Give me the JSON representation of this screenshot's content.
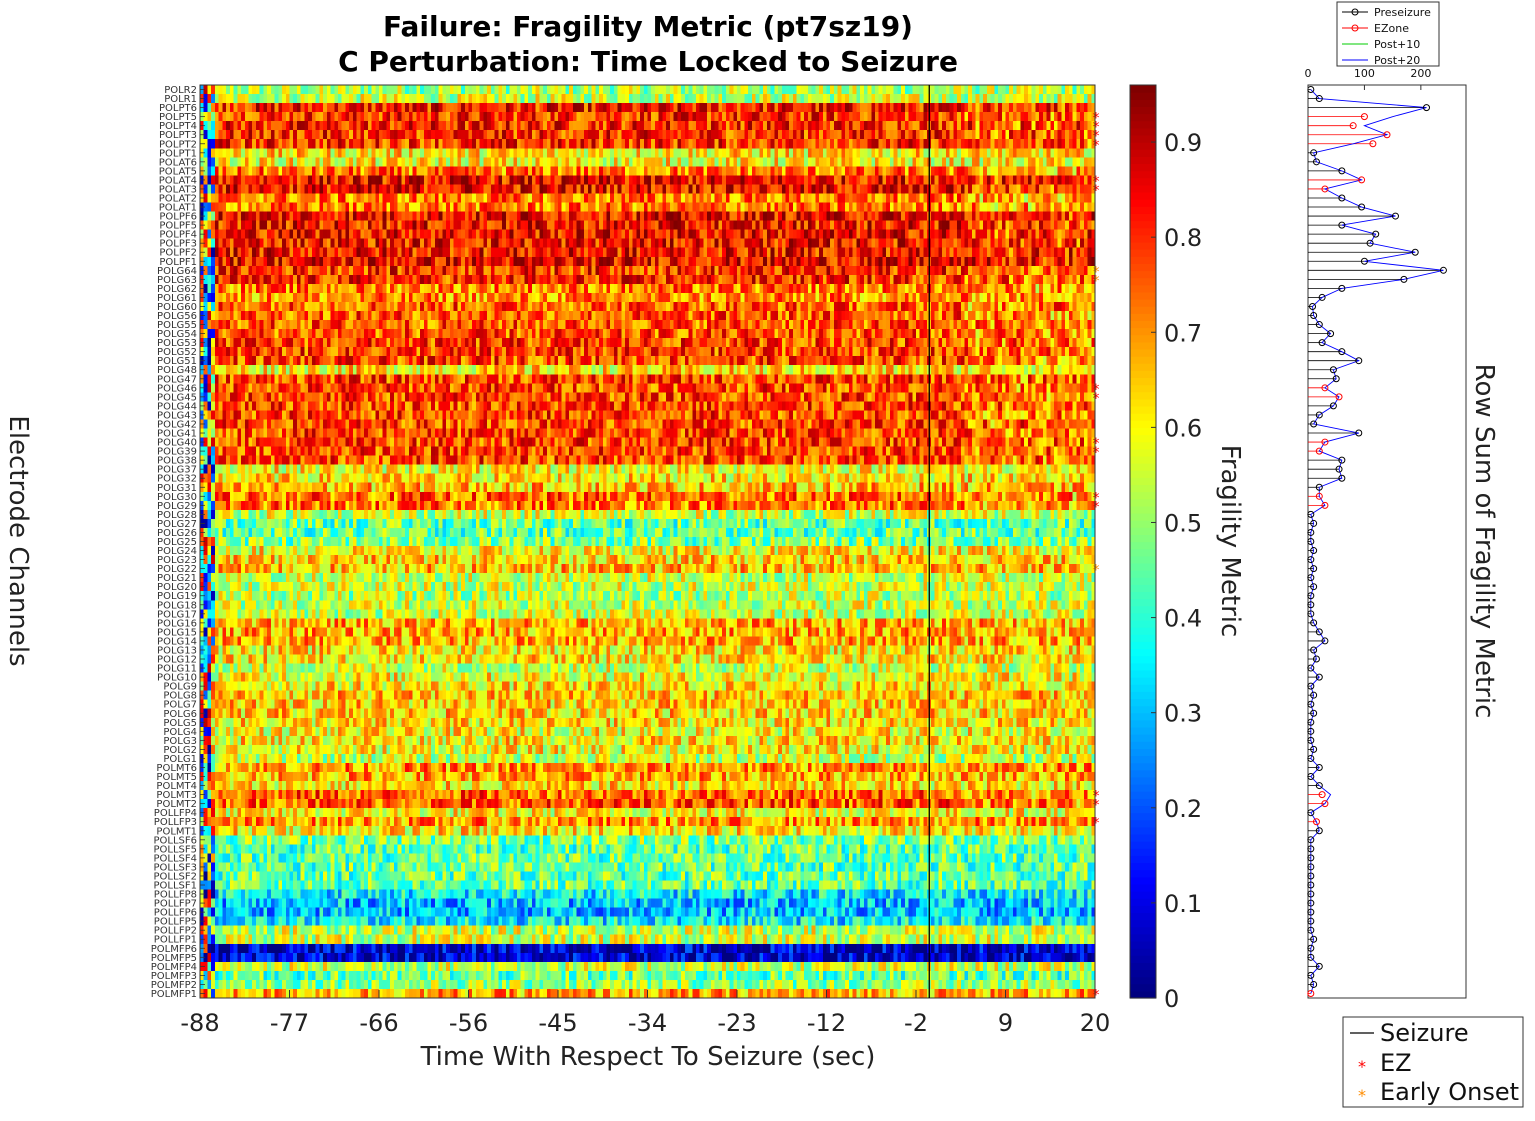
{
  "chart_data": [
    {
      "type": "heatmap",
      "title": [
        "Failure: Fragility Metric (pt7sz19)",
        "C Perturbation:  Time Locked to Seizure"
      ],
      "xlabel": "Time With Respect To Seizure (sec)",
      "ylabel": "Electrode Channels",
      "xticks": [
        "-88",
        "-77",
        "-66",
        "-56",
        "-45",
        "-34",
        "-23",
        "-12",
        "-2",
        "9",
        "20"
      ],
      "xlim": [
        -88,
        20
      ],
      "seizure_onset": 0,
      "colorbar": {
        "label": "Fragility Metric",
        "ticks": [
          "0",
          "0.1",
          "0.2",
          "0.3",
          "0.4",
          "0.5",
          "0.6",
          "0.7",
          "0.8",
          "0.9"
        ],
        "range": [
          0,
          0.96
        ],
        "colormap": "jet"
      },
      "channels": [
        "POLR2",
        "POLR1",
        "POLPT6",
        "POLPT5",
        "POLPT4",
        "POLPT3",
        "POLPT2",
        "POLPT1",
        "POLAT6",
        "POLAT5",
        "POLAT4",
        "POLAT3",
        "POLAT2",
        "POLAT1",
        "POLPF6",
        "POLPF5",
        "POLPF4",
        "POLPF3",
        "POLPF2",
        "POLPF1",
        "POLG64",
        "POLG63",
        "POLG62",
        "POLG61",
        "POLG60",
        "POLG56",
        "POLG55",
        "POLG54",
        "POLG53",
        "POLG52",
        "POLG51",
        "POLG48",
        "POLG47",
        "POLG46",
        "POLG45",
        "POLG44",
        "POLG43",
        "POLG42",
        "POLG41",
        "POLG40",
        "POLG39",
        "POLG38",
        "POLG37",
        "POLG32",
        "POLG31",
        "POLG30",
        "POLG29",
        "POLG28",
        "POLG27",
        "POLG26",
        "POLG25",
        "POLG24",
        "POLG23",
        "POLG22",
        "POLG21",
        "POLG20",
        "POLG19",
        "POLG18",
        "POLG17",
        "POLG16",
        "POLG15",
        "POLG14",
        "POLG13",
        "POLG12",
        "POLG11",
        "POLG10",
        "POLG9",
        "POLG8",
        "POLG7",
        "POLG6",
        "POLG5",
        "POLG4",
        "POLG3",
        "POLG2",
        "POLG1",
        "POLMT6",
        "POLMT5",
        "POLMT4",
        "POLMT3",
        "POLMT2",
        "POLLFP4",
        "POLLFP3",
        "POLMT1",
        "POLLSF6",
        "POLLSF5",
        "POLLSF4",
        "POLLSF3",
        "POLLSF2",
        "POLLSF1",
        "POLLFP8",
        "POLLFP7",
        "POLLFP6",
        "POLLFP5",
        "POLLFP2",
        "POLLFP1",
        "POLMFP6",
        "POLMFP5",
        "POLMFP4",
        "POLMFP3",
        "POLMFP2",
        "POLMFP1"
      ],
      "ez_channels": [
        "POLPT5",
        "POLPT4",
        "POLPT3",
        "POLPT2",
        "POLAT4",
        "POLAT3",
        "POLG46",
        "POLG45",
        "POLG40",
        "POLG39",
        "POLG30",
        "POLG29",
        "POLMT3",
        "POLMT2",
        "POLLFP3",
        "POLMFP1"
      ],
      "early_onset_channels": [
        "POLG64",
        "POLG63",
        "POLG22"
      ],
      "row_mean_fragility": [
        0.52,
        0.55,
        0.82,
        0.8,
        0.81,
        0.8,
        0.8,
        0.62,
        0.6,
        0.72,
        0.84,
        0.84,
        0.72,
        0.72,
        0.85,
        0.83,
        0.84,
        0.83,
        0.83,
        0.85,
        0.8,
        0.8,
        0.72,
        0.7,
        0.76,
        0.76,
        0.76,
        0.76,
        0.78,
        0.78,
        0.78,
        0.62,
        0.78,
        0.78,
        0.78,
        0.78,
        0.78,
        0.78,
        0.78,
        0.78,
        0.78,
        0.78,
        0.6,
        0.62,
        0.66,
        0.74,
        0.73,
        0.55,
        0.45,
        0.45,
        0.48,
        0.6,
        0.64,
        0.66,
        0.55,
        0.55,
        0.53,
        0.55,
        0.55,
        0.68,
        0.68,
        0.68,
        0.62,
        0.62,
        0.56,
        0.6,
        0.62,
        0.65,
        0.64,
        0.64,
        0.62,
        0.6,
        0.62,
        0.6,
        0.55,
        0.7,
        0.68,
        0.62,
        0.75,
        0.76,
        0.6,
        0.7,
        0.62,
        0.48,
        0.45,
        0.45,
        0.45,
        0.45,
        0.45,
        0.35,
        0.3,
        0.3,
        0.35,
        0.55,
        0.55,
        0.08,
        0.08,
        0.55,
        0.45,
        0.5,
        0.68
      ]
    },
    {
      "type": "line",
      "ylabel": "Row Sum of Fragility Metric",
      "xticks": [
        "0",
        "100",
        "200"
      ],
      "xlim": [
        0,
        280
      ],
      "legend": [
        "Preseizure",
        "EZone",
        "Post+10",
        "Post+20"
      ],
      "legend_colors": [
        "#000000",
        "#ff0000",
        "#00cc00",
        "#0000ff"
      ],
      "preseizure": [
        5,
        20,
        210,
        150,
        100,
        140,
        80,
        10,
        15,
        60,
        95,
        30,
        60,
        95,
        155,
        60,
        120,
        110,
        190,
        100,
        240,
        170,
        60,
        25,
        8,
        10,
        20,
        40,
        25,
        60,
        90,
        45,
        50,
        30,
        55,
        45,
        20,
        10,
        90,
        30,
        20,
        60,
        55,
        60,
        20,
        20,
        30,
        5,
        10,
        5,
        5,
        10,
        5,
        10,
        5,
        10,
        5,
        5,
        5,
        10,
        20,
        30,
        10,
        15,
        5,
        20,
        5,
        10,
        5,
        10,
        5,
        5,
        5,
        10,
        5,
        20,
        5,
        20,
        40,
        30,
        5,
        15,
        20,
        5,
        5,
        5,
        5,
        5,
        5,
        5,
        5,
        5,
        5,
        5,
        10,
        5,
        5,
        20,
        5,
        10,
        5
      ],
      "ezone": [
        5,
        20,
        210,
        100,
        80,
        140,
        115,
        10,
        15,
        60,
        95,
        30,
        60,
        95,
        155,
        60,
        120,
        110,
        190,
        100,
        240,
        170,
        60,
        25,
        8,
        10,
        20,
        40,
        25,
        60,
        90,
        45,
        50,
        30,
        55,
        45,
        20,
        10,
        90,
        30,
        20,
        60,
        55,
        60,
        20,
        20,
        30,
        5,
        10,
        5,
        5,
        10,
        5,
        10,
        5,
        10,
        5,
        5,
        5,
        10,
        20,
        30,
        10,
        15,
        5,
        20,
        5,
        10,
        5,
        10,
        5,
        5,
        5,
        10,
        5,
        20,
        5,
        20,
        25,
        30,
        5,
        15,
        20,
        5,
        5,
        5,
        5,
        5,
        5,
        5,
        5,
        5,
        5,
        5,
        10,
        5,
        5,
        20,
        5,
        10,
        5
      ],
      "legend_bottom": [
        "Seizure",
        "EZ",
        "Early Onset"
      ]
    }
  ],
  "colors": {
    "ez": "#ff0000",
    "early_onset": "#ff8c00",
    "seizure_line": "#000000"
  }
}
